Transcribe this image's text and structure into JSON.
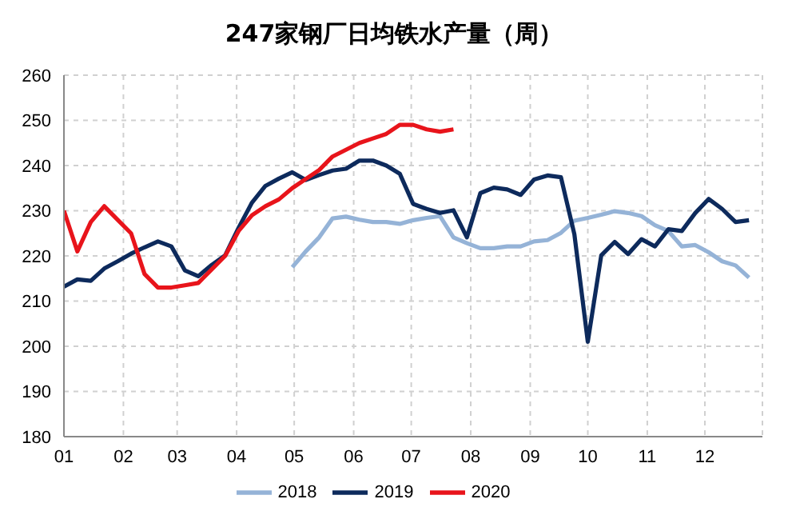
{
  "chart_data": {
    "type": "line",
    "title": "247家钢厂日均铁水产量（周）",
    "x": [
      "--01-01",
      "--01-08",
      "--01-15",
      "--01-22",
      "--01-29",
      "--02-05",
      "--02-12",
      "--02-19",
      "--02-26",
      "--03-05",
      "--03-12",
      "--03-19",
      "--03-26",
      "--04-02",
      "--04-09",
      "--04-16",
      "--04-23",
      "--04-30",
      "--05-07",
      "--05-14",
      "--05-21",
      "--05-28",
      "--06-04",
      "--06-11",
      "--06-18",
      "--06-25",
      "--07-02",
      "--07-09",
      "--07-16",
      "--07-23",
      "--07-30",
      "--08-06",
      "--08-13",
      "--08-20",
      "--08-27",
      "--09-03",
      "--09-10",
      "--09-17",
      "--09-24",
      "--10-01",
      "--10-08",
      "--10-15",
      "--10-22",
      "--10-29",
      "--11-05",
      "--11-12",
      "--11-19",
      "--11-26",
      "--12-03",
      "--12-10",
      "--12-17",
      "--12-24"
    ],
    "series": [
      {
        "name": "2018",
        "color": "#95b3d7",
        "values": [
          null,
          null,
          null,
          null,
          null,
          null,
          null,
          null,
          null,
          null,
          null,
          null,
          null,
          null,
          null,
          null,
          null,
          217.5,
          221,
          224.1,
          228.3,
          228.7,
          228,
          227.5,
          227.5,
          227.1,
          227.9,
          228.4,
          228.8,
          224.1,
          222.8,
          221.7,
          221.7,
          222.1,
          222.1,
          223.2,
          223.5,
          225.1,
          227.8,
          228.4,
          229.1,
          229.9,
          229.5,
          228.8,
          226.8,
          225.5,
          222.1,
          222.4,
          220.8,
          218.8,
          217.9,
          215.2
        ]
      },
      {
        "name": "2019",
        "color": "#0d2a5c",
        "values": [
          213.2,
          214.8,
          214.5,
          217.2,
          218.8,
          220.5,
          221.9,
          223.2,
          222.1,
          216.8,
          215.5,
          218,
          220.1,
          226.2,
          231.8,
          235.5,
          237.1,
          238.5,
          236.8,
          237.9,
          238.9,
          239.3,
          241.1,
          241.1,
          240,
          238.2,
          231.5,
          230.4,
          229.5,
          230.1,
          224.1,
          233.9,
          235.1,
          234.7,
          233.5,
          236.9,
          237.8,
          237.4,
          224.8,
          201,
          220.1,
          223.1,
          220.4,
          223.7,
          222.1,
          225.9,
          225.5,
          229.5,
          232.6,
          230.4,
          227.5,
          227.9
        ]
      },
      {
        "name": "2020",
        "color": "#e8141b",
        "values": [
          230,
          221,
          227.5,
          231,
          228,
          225,
          216,
          213,
          213,
          213.5,
          214,
          217,
          220,
          225.5,
          229,
          231,
          232.5,
          235,
          237,
          239,
          242,
          243.5,
          245,
          246,
          247,
          249,
          249,
          248,
          247.5,
          248,
          null,
          null,
          null,
          null,
          null,
          null,
          null,
          null,
          null,
          null,
          null,
          null,
          null,
          null,
          null,
          null,
          null,
          null,
          null,
          null,
          null,
          null
        ]
      }
    ],
    "xlim": [
      "--01-01",
      "--12-31"
    ],
    "xticks": [
      {
        "value": "--01-01",
        "label": "01"
      },
      {
        "value": "--02-01",
        "label": "02"
      },
      {
        "value": "--03-01",
        "label": "03"
      },
      {
        "value": "--04-01",
        "label": "04"
      },
      {
        "value": "--05-01",
        "label": "05"
      },
      {
        "value": "--06-01",
        "label": "06"
      },
      {
        "value": "--07-01",
        "label": "07"
      },
      {
        "value": "--08-01",
        "label": "08"
      },
      {
        "value": "--09-01",
        "label": "09"
      },
      {
        "value": "--10-01",
        "label": "10"
      },
      {
        "value": "--11-01",
        "label": "11"
      },
      {
        "value": "--12-01",
        "label": "12"
      }
    ],
    "ylim": [
      180,
      260
    ],
    "yticks": [
      180,
      190,
      200,
      210,
      220,
      230,
      240,
      250,
      260
    ],
    "grid": true,
    "legend": "bottom",
    "marker": "none",
    "line_style": "solid"
  }
}
